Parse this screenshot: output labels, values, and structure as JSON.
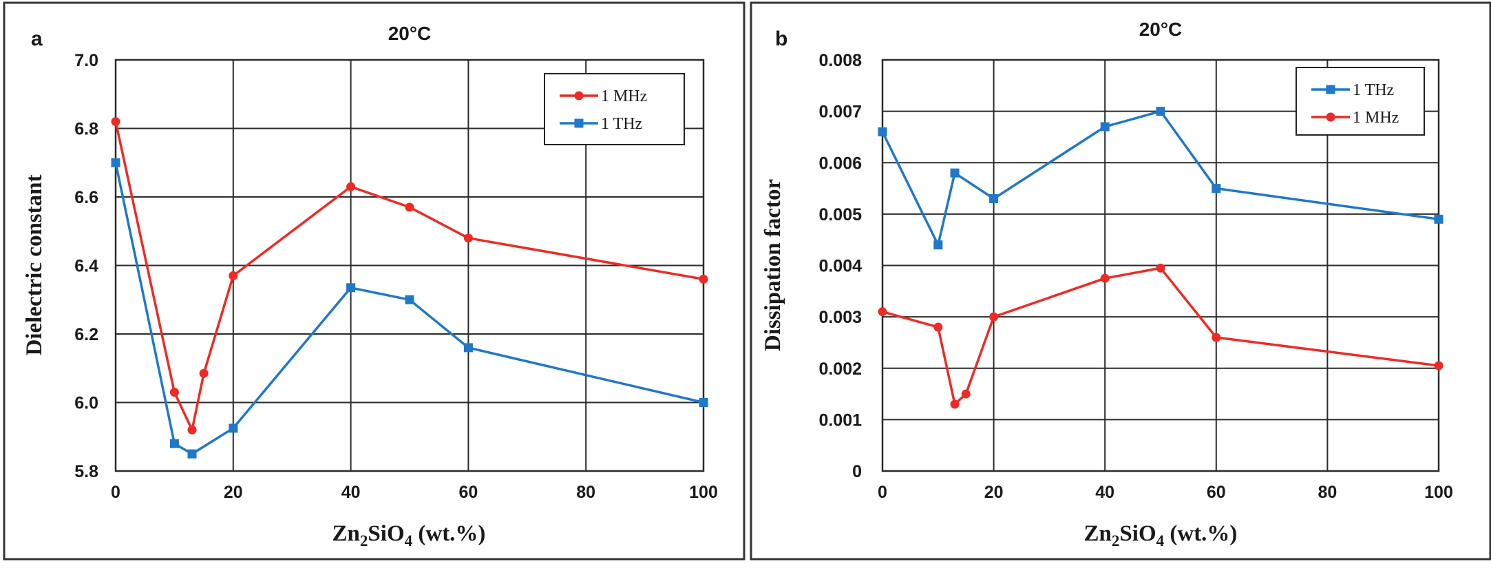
{
  "colors": {
    "red": "#ee2a24",
    "blue": "#1f78c8",
    "grid": "#2a2a2a",
    "frame": "#333333"
  },
  "chart_data": [
    {
      "type": "line",
      "panel": "a",
      "title": "20°C",
      "xlabel_parts": [
        "Zn",
        "2",
        "SiO",
        "4",
        " (wt.%)"
      ],
      "ylabel": "Dielectric constant",
      "xlim": [
        0,
        100
      ],
      "ylim": [
        5.8,
        7.0
      ],
      "x_ticks": [
        0,
        20,
        40,
        60,
        80,
        100
      ],
      "x_tick_labels": [
        "0",
        "20",
        "40",
        "60",
        "80",
        "100"
      ],
      "y_ticks": [
        5.8,
        6.0,
        6.2,
        6.4,
        6.6,
        6.8,
        7.0
      ],
      "y_tick_labels": [
        "5.8",
        "6.0",
        "6.2",
        "6.4",
        "6.6",
        "6.8",
        "7.0"
      ],
      "grid": true,
      "legend_position": "top-right",
      "series": [
        {
          "name": "1 MHz",
          "color": "red",
          "marker": "circle",
          "x": [
            0,
            10,
            13,
            15,
            20,
            40,
            50,
            60,
            100
          ],
          "y": [
            6.82,
            6.03,
            5.92,
            6.085,
            6.37,
            6.63,
            6.57,
            6.48,
            6.36
          ]
        },
        {
          "name": "1 THz",
          "color": "blue",
          "marker": "square",
          "x": [
            0,
            10,
            13,
            20,
            40,
            50,
            60,
            100
          ],
          "y": [
            6.7,
            5.88,
            5.85,
            5.925,
            6.335,
            6.3,
            6.16,
            6.0
          ]
        }
      ]
    },
    {
      "type": "line",
      "panel": "b",
      "title": "20°C",
      "xlabel_parts": [
        "Zn",
        "2",
        "SiO",
        "4",
        " (wt.%)"
      ],
      "ylabel": "Dissipation  factor",
      "xlim": [
        0,
        100
      ],
      "ylim": [
        0,
        0.008
      ],
      "x_ticks": [
        0,
        20,
        40,
        60,
        80,
        100
      ],
      "x_tick_labels": [
        "0",
        "20",
        "40",
        "60",
        "80",
        "100"
      ],
      "y_ticks": [
        0,
        0.001,
        0.002,
        0.003,
        0.004,
        0.005,
        0.006,
        0.007,
        0.008
      ],
      "y_tick_labels": [
        "0",
        "0.001",
        "0.002",
        "0.003",
        "0.004",
        "0.005",
        "0.006",
        "0.007",
        "0.008"
      ],
      "grid": true,
      "legend_position": "top-right",
      "series": [
        {
          "name": "1 THz",
          "color": "blue",
          "marker": "square",
          "x": [
            0,
            10,
            13,
            20,
            40,
            50,
            60,
            100
          ],
          "y": [
            0.0066,
            0.0044,
            0.0058,
            0.0053,
            0.0067,
            0.007,
            0.0055,
            0.0049
          ]
        },
        {
          "name": "1 MHz",
          "color": "red",
          "marker": "circle",
          "x": [
            0,
            10,
            13,
            15,
            20,
            40,
            50,
            60,
            100
          ],
          "y": [
            0.0031,
            0.0028,
            0.0013,
            0.0015,
            0.003,
            0.00375,
            0.00395,
            0.0026,
            0.00205
          ]
        }
      ]
    }
  ]
}
